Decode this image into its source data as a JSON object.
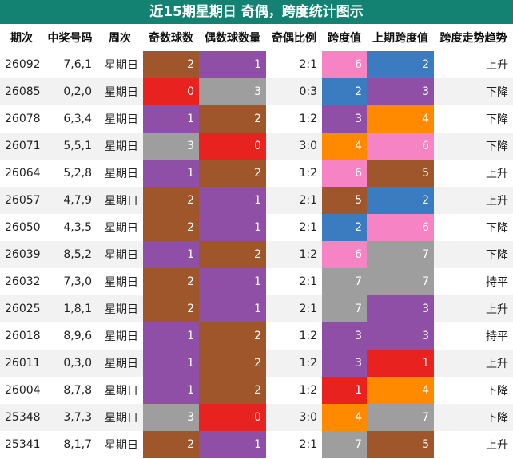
{
  "title": "近15期星期日 奇偶，跨度统计图示",
  "headers": [
    "期次",
    "中奖号码",
    "周次",
    "奇数球数",
    "偶数球数量",
    "奇偶比例",
    "跨度值",
    "上期跨度值",
    "跨度走势趋势"
  ],
  "colors": {
    "0": "#e8231f",
    "1": "#8f4fa6",
    "2": "#a0562b",
    "3": "#9e9e9e",
    "4": "#ff8a00",
    "5": "#a0562b",
    "6": "#f683c4",
    "7": "#9e9e9e"
  },
  "colors_by_column": {
    "odd": {
      "0": "#e8231f",
      "1": "#8f4fa6",
      "2": "#a0562b",
      "3": "#9e9e9e"
    },
    "even": {
      "0": "#e8231f",
      "1": "#8f4fa6",
      "2": "#a0562b",
      "3": "#9e9e9e"
    },
    "span": {
      "1": "#e8231f",
      "2": "#3b7bbf",
      "3": "#8f4fa6",
      "4": "#ff8a00",
      "5": "#a0562b",
      "6": "#f683c4",
      "7": "#9e9e9e"
    },
    "prev": {
      "1": "#e8231f",
      "2": "#3b7bbf",
      "3": "#8f4fa6",
      "4": "#ff8a00",
      "5": "#a0562b",
      "6": "#f683c4",
      "7": "#9e9e9e"
    }
  },
  "rows": [
    {
      "issue": "26092",
      "numbers": "7,6,1",
      "weekday": "星期日",
      "odd": "2",
      "even": "1",
      "ratio": "2:1",
      "span": "6",
      "prev": "2",
      "trend": "上升"
    },
    {
      "issue": "26085",
      "numbers": "0,2,0",
      "weekday": "星期日",
      "odd": "0",
      "even": "3",
      "ratio": "0:3",
      "span": "2",
      "prev": "3",
      "trend": "下降"
    },
    {
      "issue": "26078",
      "numbers": "6,3,4",
      "weekday": "星期日",
      "odd": "1",
      "even": "2",
      "ratio": "1:2",
      "span": "3",
      "prev": "4",
      "trend": "下降"
    },
    {
      "issue": "26071",
      "numbers": "5,5,1",
      "weekday": "星期日",
      "odd": "3",
      "even": "0",
      "ratio": "3:0",
      "span": "4",
      "prev": "6",
      "trend": "下降"
    },
    {
      "issue": "26064",
      "numbers": "5,2,8",
      "weekday": "星期日",
      "odd": "1",
      "even": "2",
      "ratio": "1:2",
      "span": "6",
      "prev": "5",
      "trend": "上升"
    },
    {
      "issue": "26057",
      "numbers": "4,7,9",
      "weekday": "星期日",
      "odd": "2",
      "even": "1",
      "ratio": "2:1",
      "span": "5",
      "prev": "2",
      "trend": "上升"
    },
    {
      "issue": "26050",
      "numbers": "4,3,5",
      "weekday": "星期日",
      "odd": "2",
      "even": "1",
      "ratio": "2:1",
      "span": "2",
      "prev": "6",
      "trend": "下降"
    },
    {
      "issue": "26039",
      "numbers": "8,5,2",
      "weekday": "星期日",
      "odd": "1",
      "even": "2",
      "ratio": "1:2",
      "span": "6",
      "prev": "7",
      "trend": "下降"
    },
    {
      "issue": "26032",
      "numbers": "7,3,0",
      "weekday": "星期日",
      "odd": "2",
      "even": "1",
      "ratio": "2:1",
      "span": "7",
      "prev": "7",
      "trend": "持平"
    },
    {
      "issue": "26025",
      "numbers": "1,8,1",
      "weekday": "星期日",
      "odd": "2",
      "even": "1",
      "ratio": "2:1",
      "span": "7",
      "prev": "3",
      "trend": "上升"
    },
    {
      "issue": "26018",
      "numbers": "8,9,6",
      "weekday": "星期日",
      "odd": "1",
      "even": "2",
      "ratio": "1:2",
      "span": "3",
      "prev": "3",
      "trend": "持平"
    },
    {
      "issue": "26011",
      "numbers": "0,3,0",
      "weekday": "星期日",
      "odd": "1",
      "even": "2",
      "ratio": "1:2",
      "span": "3",
      "prev": "1",
      "trend": "上升"
    },
    {
      "issue": "26004",
      "numbers": "8,7,8",
      "weekday": "星期日",
      "odd": "1",
      "even": "2",
      "ratio": "1:2",
      "span": "1",
      "prev": "4",
      "trend": "下降"
    },
    {
      "issue": "25348",
      "numbers": "3,7,3",
      "weekday": "星期日",
      "odd": "3",
      "even": "0",
      "ratio": "3:0",
      "span": "4",
      "prev": "7",
      "trend": "下降"
    },
    {
      "issue": "25341",
      "numbers": "8,1,7",
      "weekday": "星期日",
      "odd": "2",
      "even": "1",
      "ratio": "2:1",
      "span": "7",
      "prev": "5",
      "trend": "上升"
    }
  ]
}
